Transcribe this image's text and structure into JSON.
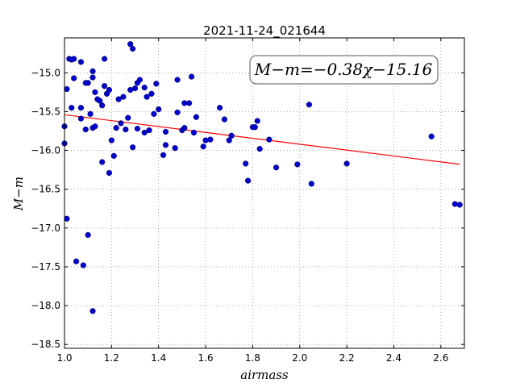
{
  "chart_data": {
    "type": "scatter",
    "title": "2021-11-24_021644",
    "xlabel": "airmass",
    "ylabel": "M−m",
    "xlim": [
      1.0,
      2.7
    ],
    "ylim": [
      -18.55,
      -14.55
    ],
    "y_inverted": true,
    "grid": true,
    "x_ticks": [
      "1.0",
      "1.2",
      "1.4",
      "1.6",
      "1.8",
      "2.0",
      "2.2",
      "2.4",
      "2.6"
    ],
    "x_tick_values": [
      1.0,
      1.2,
      1.4,
      1.6,
      1.8,
      2.0,
      2.2,
      2.4,
      2.6
    ],
    "y_ticks": [
      "−15.0",
      "−15.5",
      "−16.0",
      "−16.5",
      "−17.0",
      "−17.5",
      "−18.0",
      "−18.5"
    ],
    "y_tick_values": [
      -15.0,
      -15.5,
      -16.0,
      -16.5,
      -17.0,
      -17.5,
      -18.0,
      -18.5
    ],
    "annotation": "M−m=−0.38χ−15.16",
    "fit_line": {
      "slope": -0.38,
      "intercept": -15.16,
      "color": "#ff0000"
    },
    "marker_color": "#0000cc",
    "points": [
      [
        1.0,
        -15.69
      ],
      [
        1.0,
        -15.91
      ],
      [
        1.01,
        -16.88
      ],
      [
        1.01,
        -15.21
      ],
      [
        1.02,
        -14.82
      ],
      [
        1.03,
        -15.45
      ],
      [
        1.03,
        -14.83
      ],
      [
        1.04,
        -15.07
      ],
      [
        1.04,
        -14.82
      ],
      [
        1.05,
        -17.43
      ],
      [
        1.07,
        -15.45
      ],
      [
        1.07,
        -14.86
      ],
      [
        1.07,
        -15.59
      ],
      [
        1.08,
        -17.48
      ],
      [
        1.09,
        -15.13
      ],
      [
        1.09,
        -15.73
      ],
      [
        1.1,
        -17.09
      ],
      [
        1.1,
        -15.13
      ],
      [
        1.11,
        -15.53
      ],
      [
        1.12,
        -18.07
      ],
      [
        1.12,
        -15.71
      ],
      [
        1.12,
        -15.06
      ],
      [
        1.12,
        -14.98
      ],
      [
        1.13,
        -15.69
      ],
      [
        1.13,
        -15.25
      ],
      [
        1.14,
        -15.34
      ],
      [
        1.15,
        -15.36
      ],
      [
        1.16,
        -16.15
      ],
      [
        1.16,
        -15.42
      ],
      [
        1.17,
        -15.17
      ],
      [
        1.17,
        -14.82
      ],
      [
        1.18,
        -15.27
      ],
      [
        1.19,
        -16.29
      ],
      [
        1.19,
        -15.22
      ],
      [
        1.2,
        -15.87
      ],
      [
        1.21,
        -16.07
      ],
      [
        1.22,
        -15.71
      ],
      [
        1.23,
        -15.34
      ],
      [
        1.24,
        -15.65
      ],
      [
        1.25,
        -15.31
      ],
      [
        1.26,
        -15.73
      ],
      [
        1.27,
        -15.58
      ],
      [
        1.28,
        -14.63
      ],
      [
        1.28,
        -15.22
      ],
      [
        1.29,
        -14.69
      ],
      [
        1.29,
        -15.96
      ],
      [
        1.3,
        -15.2
      ],
      [
        1.31,
        -15.13
      ],
      [
        1.31,
        -15.72
      ],
      [
        1.32,
        -15.09
      ],
      [
        1.34,
        -15.19
      ],
      [
        1.34,
        -15.77
      ],
      [
        1.35,
        -15.31
      ],
      [
        1.36,
        -15.74
      ],
      [
        1.37,
        -15.27
      ],
      [
        1.38,
        -15.53
      ],
      [
        1.39,
        -15.14
      ],
      [
        1.4,
        -15.47
      ],
      [
        1.42,
        -16.06
      ],
      [
        1.43,
        -15.76
      ],
      [
        1.43,
        -15.93
      ],
      [
        1.47,
        -15.97
      ],
      [
        1.48,
        -15.09
      ],
      [
        1.48,
        -15.51
      ],
      [
        1.5,
        -15.74
      ],
      [
        1.51,
        -15.71
      ],
      [
        1.51,
        -15.39
      ],
      [
        1.53,
        -15.39
      ],
      [
        1.54,
        -15.05
      ],
      [
        1.55,
        -15.77
      ],
      [
        1.56,
        -15.57
      ],
      [
        1.59,
        -15.95
      ],
      [
        1.6,
        -15.87
      ],
      [
        1.62,
        -15.86
      ],
      [
        1.66,
        -15.45
      ],
      [
        1.68,
        -15.6
      ],
      [
        1.7,
        -15.87
      ],
      [
        1.71,
        -15.81
      ],
      [
        1.77,
        -16.17
      ],
      [
        1.78,
        -16.39
      ],
      [
        1.8,
        -15.7
      ],
      [
        1.81,
        -15.7
      ],
      [
        1.82,
        -15.62
      ],
      [
        1.83,
        -15.98
      ],
      [
        1.87,
        -15.86
      ],
      [
        1.9,
        -16.22
      ],
      [
        1.99,
        -16.18
      ],
      [
        2.04,
        -15.41
      ],
      [
        2.05,
        -16.43
      ],
      [
        2.2,
        -16.17
      ],
      [
        2.56,
        -15.82
      ],
      [
        2.66,
        -16.69
      ],
      [
        2.68,
        -16.7
      ]
    ]
  }
}
